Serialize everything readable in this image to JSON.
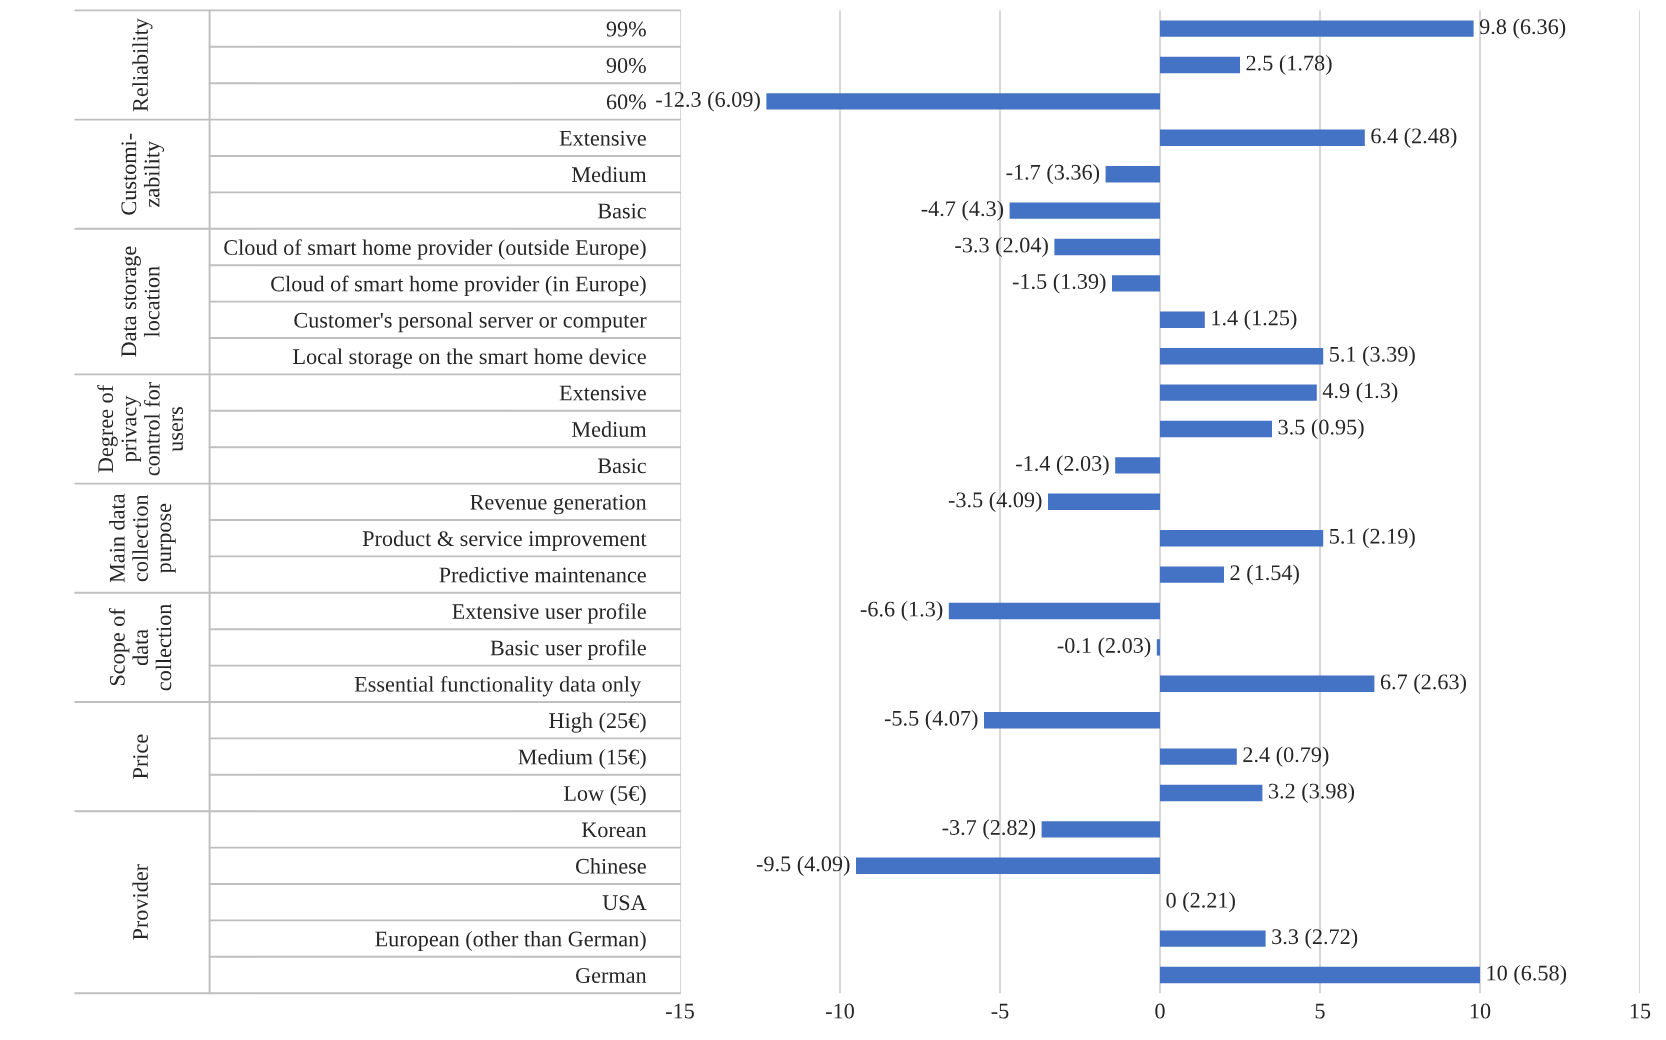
{
  "chart_data": {
    "type": "bar",
    "orientation": "horizontal",
    "categories": [
      "99%",
      "90%",
      "60%",
      "Extensive",
      "Medium",
      "Basic",
      "Cloud of smart home provider (outside Europe)",
      "Cloud of smart home provider (in Europe)",
      "Customer's personal server or computer",
      "Local storage on the smart home device",
      "Extensive",
      "Medium",
      "Basic",
      "Revenue generation",
      "Product & service improvement",
      "Predictive maintenance",
      "Extensive user profile",
      "Basic user profile",
      "Essential functionality data only ",
      "High (25€)",
      "Medium (15€)",
      "Low (5€)",
      "Korean",
      "Chinese",
      "USA",
      "European (other than German)",
      "German"
    ],
    "values": [
      9.8,
      2.5,
      -12.3,
      6.4,
      -1.7,
      -4.7,
      -3.3,
      -1.5,
      1.4,
      5.1,
      4.9,
      3.5,
      -1.4,
      -3.5,
      5.1,
      2,
      -6.6,
      -0.1,
      6.7,
      -5.5,
      2.4,
      3.2,
      -3.7,
      -9.5,
      0,
      3.3,
      10
    ],
    "value_labels": [
      "9.8 (6.36)",
      "2.5 (1.78)",
      "-12.3 (6.09)",
      "6.4 (2.48)",
      "-1.7 (3.36)",
      "-4.7 (4.3)",
      "-3.3 (2.04)",
      "-1.5 (1.39)",
      "1.4 (1.25)",
      "5.1 (3.39)",
      "4.9 (1.3)",
      "3.5 (0.95)",
      "-1.4 (2.03)",
      "-3.5 (4.09)",
      "5.1 (2.19)",
      "2 (1.54)",
      "-6.6 (1.3)",
      "-0.1 (2.03)",
      "6.7 (2.63)",
      "-5.5 (4.07)",
      "2.4 (0.79)",
      "3.2 (3.98)",
      "-3.7 (2.82)",
      "-9.5 (4.09)",
      "0 (2.21)",
      "3.3 (2.72)",
      "10 (6.58)"
    ],
    "color": "#4472c4",
    "annotations": [
      "Reliability",
      "Customi-\nzability",
      "Data storage\nlocation",
      "Degree of\nprivacy\ncontrol for\nusers",
      "Main data\ncollection\npurpose",
      "Scope of\ndata\ncollection",
      "Price",
      "Provider"
    ],
    "xlim": [
      -15,
      15
    ],
    "xticks": [
      -15,
      -10,
      -5,
      0,
      5,
      10,
      15
    ],
    "grid": "x"
  }
}
